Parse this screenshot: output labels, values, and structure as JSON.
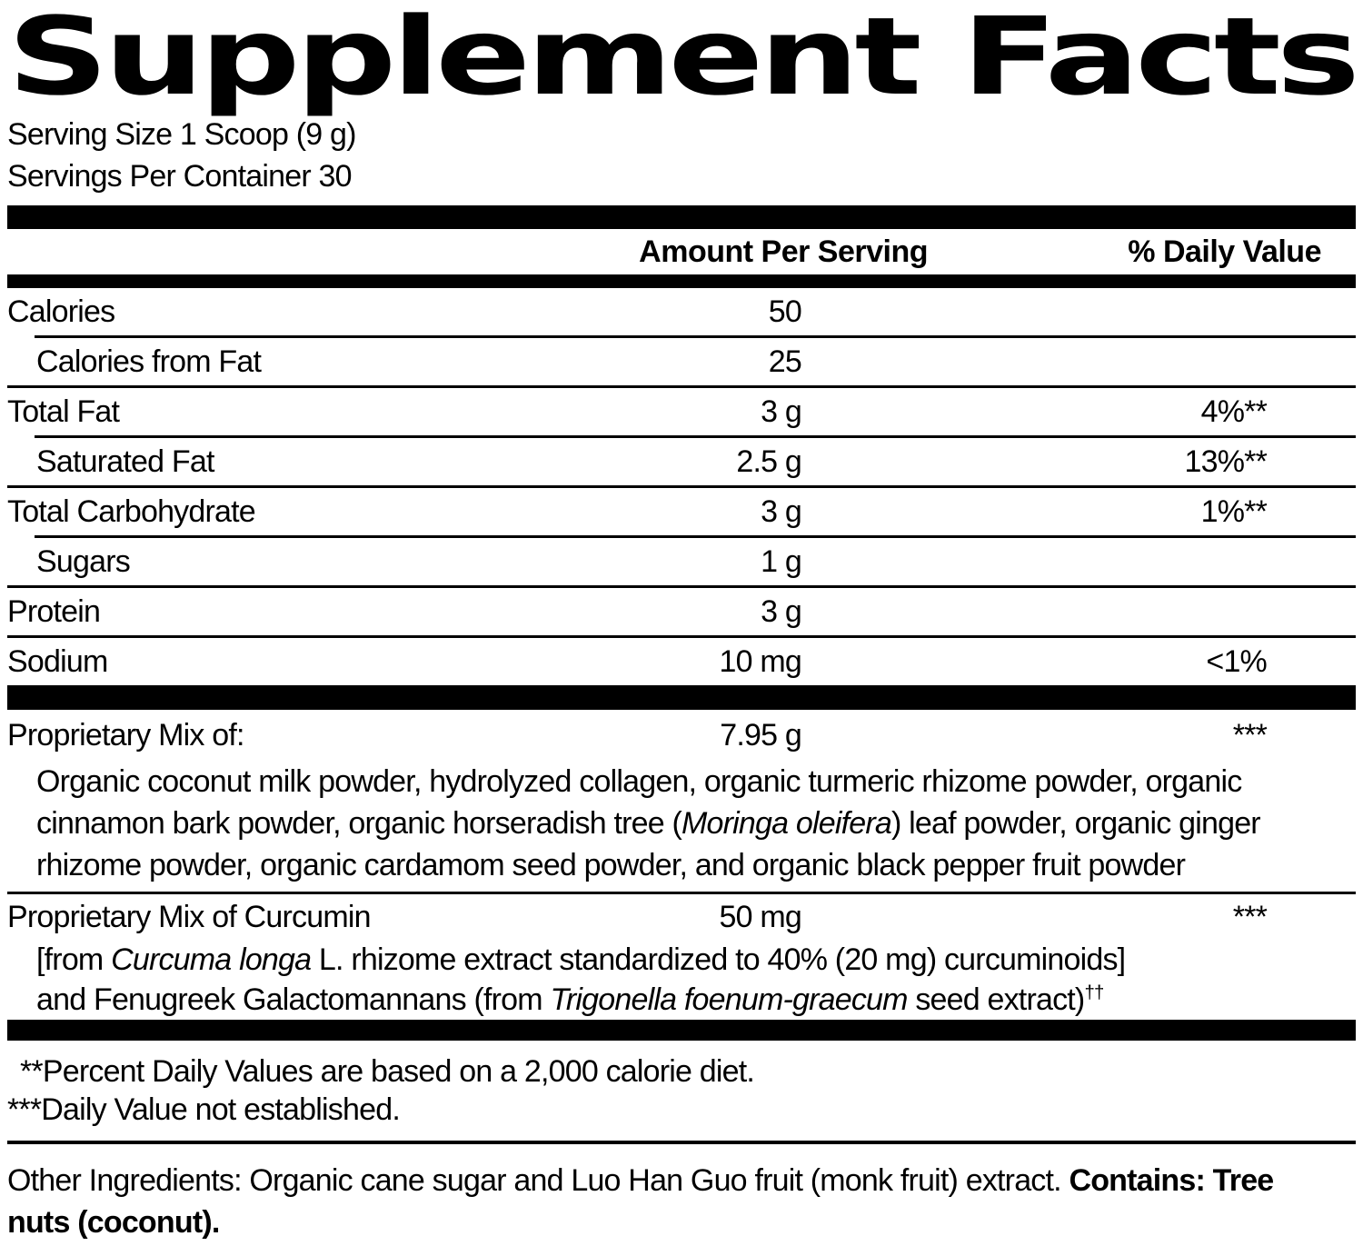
{
  "colors": {
    "ink": "#000000",
    "paper": "#ffffff"
  },
  "title": "Supplement Facts",
  "serving": {
    "size": "Serving Size 1 Scoop (9 g)",
    "per_container": "Servings Per Container 30"
  },
  "table": {
    "headers": {
      "amount": "Amount Per Serving",
      "dv": "% Daily Value"
    },
    "rows": [
      {
        "label": "Calories",
        "amount": "50",
        "dv": "",
        "indent": false
      },
      {
        "label": "Calories from Fat",
        "amount": "25",
        "dv": "",
        "indent": true
      },
      {
        "label": "Total Fat",
        "amount": "3 g",
        "dv": "4%**",
        "indent": false
      },
      {
        "label": "Saturated Fat",
        "amount": "2.5 g",
        "dv": "13%**",
        "indent": true
      },
      {
        "label": "Total Carbohydrate",
        "amount": "3 g",
        "dv": "1%**",
        "indent": false
      },
      {
        "label": "Sugars",
        "amount": "1 g",
        "dv": "",
        "indent": true
      },
      {
        "label": "Protein",
        "amount": "3 g",
        "dv": "",
        "indent": false
      },
      {
        "label": "Sodium",
        "amount": "10 mg",
        "dv": "<1%",
        "indent": false
      }
    ]
  },
  "proprietary_mix": {
    "label": "Proprietary Mix of:",
    "amount": "7.95 g",
    "dv": "***",
    "description_lines": [
      [
        {
          "t": "Organic coconut milk powder, hydrolyzed collagen, organic turmeric rhizome powder, organic"
        }
      ],
      [
        {
          "t": "cinnamon bark powder, organic horseradish tree ("
        },
        {
          "t": "Moringa oleifera",
          "i": true
        },
        {
          "t": ") leaf powder, organic ginger"
        }
      ],
      [
        {
          "t": "rhizome powder, organic cardamom seed powder, and organic black pepper fruit powder"
        }
      ]
    ]
  },
  "curcumin_mix": {
    "label": "Proprietary Mix of Curcumin",
    "amount": "50 mg",
    "dv": "***",
    "description_lines": [
      [
        {
          "t": "[from "
        },
        {
          "t": "Curcuma longa",
          "i": true
        },
        {
          "t": " L. rhizome extract standardized to 40% (20 mg) curcuminoids]"
        }
      ],
      [
        {
          "t": "and Fenugreek Galactomannans (from "
        },
        {
          "t": "Trigonella foenum-graecum",
          "i": true
        },
        {
          "t": " seed extract)"
        },
        {
          "t": "††",
          "sup": true
        }
      ]
    ]
  },
  "footnotes": [
    {
      "text": "**Percent Daily Values are based on a 2,000 calorie diet."
    },
    {
      "text": "***Daily Value not established."
    }
  ],
  "other_ingredients": {
    "lines": [
      [
        {
          "t": "Other Ingredients: Organic cane sugar and Luo Han Guo fruit (monk fruit) extract. "
        },
        {
          "t": "Contains: Tree",
          "b": true
        }
      ],
      [
        {
          "t": "nuts (coconut).",
          "b": true
        }
      ]
    ]
  }
}
